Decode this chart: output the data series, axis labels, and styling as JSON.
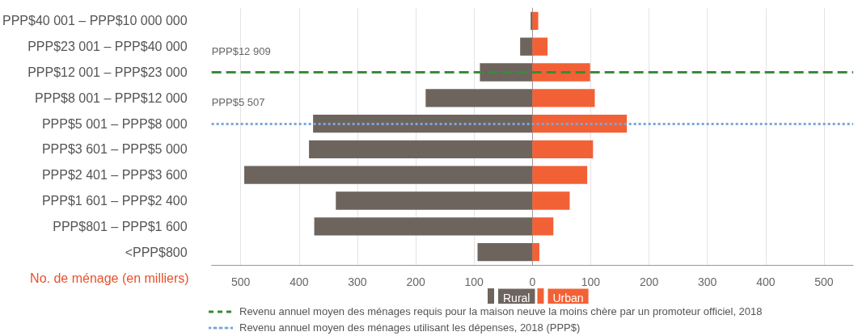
{
  "chart_data": {
    "type": "bar",
    "orientation": "horizontal",
    "stacked": true,
    "categories": [
      "PPP$40 001 – PPP$10 000 000",
      "PPP$23 001 – PPP$40 000",
      "PPP$12 001 – PPP$23 000",
      "PPP$8 001 – PPP$12 000",
      "PPP$5 001 – PPP$8 000",
      "PPP$3 601 – PPP$5 000",
      "PPP$2 401 – PPP$3 600",
      "PPP$1 601 – PPP$2 400",
      "PPP$801 – PPP$1 600",
      "<PPP$800"
    ],
    "series": [
      {
        "name": "Rural",
        "color": "#6e645e",
        "values": [
          -3,
          -21,
          -90,
          -183,
          -376,
          -383,
          -494,
          -337,
          -374,
          -94
        ]
      },
      {
        "name": "Urban",
        "color": "#f26135",
        "values": [
          10,
          26,
          99,
          107,
          162,
          104,
          94,
          64,
          36,
          12
        ]
      }
    ],
    "xlabel": "No. de ménage (en milliers)",
    "xlim": [
      -550,
      550
    ],
    "xticks": [
      {
        "value": -500,
        "label": "500"
      },
      {
        "value": -400,
        "label": "400"
      },
      {
        "value": -300,
        "label": "300"
      },
      {
        "value": -200,
        "label": "200"
      },
      {
        "value": -100,
        "label": "100"
      },
      0,
      100,
      200,
      300,
      400,
      500
    ],
    "grid": "x",
    "legend": "bottom",
    "ref_lines": [
      {
        "axis": "y",
        "value": "PPP$12 001 – PPP$23 000",
        "label": "PPP$12 909",
        "color": "#3a8a3c",
        "line_style": "dashed"
      },
      {
        "axis": "y",
        "value": "PPP$5 001 – PPP$8 000",
        "label": "PPP$5 507",
        "color": "#7aa7d8",
        "line_style": "dotted"
      }
    ],
    "annotations": [
      "Revenu annuel moyen des ménages requis pour la maison neuve la moins chère par un promoteur officiel, 2018",
      "Revenu annuel moyen des ménages utilisant les dépenses, 2018 (PPP$)"
    ]
  }
}
